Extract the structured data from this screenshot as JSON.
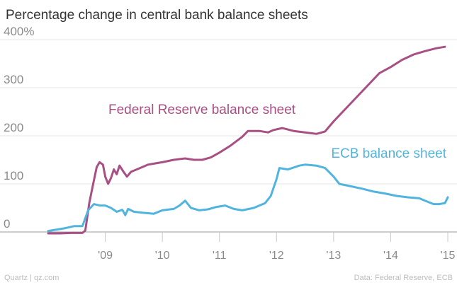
{
  "chart_data": {
    "type": "line",
    "title": "Percentage change in central bank balance sheets",
    "ylim": [
      0,
      400
    ],
    "y_ticks": [
      {
        "value": 400,
        "label": "400%"
      },
      {
        "value": 300,
        "label": "300"
      },
      {
        "value": 200,
        "label": "200"
      },
      {
        "value": 100,
        "label": "100"
      },
      {
        "value": 0,
        "label": "0"
      }
    ],
    "xlim": [
      2008.0,
      2015.0
    ],
    "x_ticks": [
      {
        "value": 2009,
        "label": "'09"
      },
      {
        "value": 2010,
        "label": "'10"
      },
      {
        "value": 2011,
        "label": "'11"
      },
      {
        "value": 2012,
        "label": "'12"
      },
      {
        "value": 2013,
        "label": "'13"
      },
      {
        "value": 2014,
        "label": "'14"
      },
      {
        "value": 2015,
        "label": "'15"
      }
    ],
    "grid": true,
    "series": [
      {
        "name": "Federal Reserve balance sheet",
        "color": "#a84f83",
        "points": [
          [
            2008.0,
            -3
          ],
          [
            2008.2,
            -3
          ],
          [
            2008.4,
            -2
          ],
          [
            2008.6,
            -2
          ],
          [
            2008.65,
            3
          ],
          [
            2008.72,
            60
          ],
          [
            2008.78,
            95
          ],
          [
            2008.85,
            135
          ],
          [
            2008.9,
            145
          ],
          [
            2008.96,
            140
          ],
          [
            2009.0,
            115
          ],
          [
            2009.05,
            100
          ],
          [
            2009.1,
            112
          ],
          [
            2009.15,
            130
          ],
          [
            2009.2,
            120
          ],
          [
            2009.25,
            138
          ],
          [
            2009.32,
            125
          ],
          [
            2009.38,
            115
          ],
          [
            2009.45,
            125
          ],
          [
            2009.55,
            130
          ],
          [
            2009.65,
            135
          ],
          [
            2009.75,
            140
          ],
          [
            2009.85,
            142
          ],
          [
            2010.0,
            145
          ],
          [
            2010.2,
            150
          ],
          [
            2010.4,
            153
          ],
          [
            2010.55,
            150
          ],
          [
            2010.7,
            150
          ],
          [
            2010.85,
            155
          ],
          [
            2011.0,
            165
          ],
          [
            2011.2,
            180
          ],
          [
            2011.4,
            198
          ],
          [
            2011.5,
            210
          ],
          [
            2011.7,
            210
          ],
          [
            2011.85,
            207
          ],
          [
            2011.95,
            212
          ],
          [
            2012.1,
            216
          ],
          [
            2012.3,
            210
          ],
          [
            2012.5,
            207
          ],
          [
            2012.7,
            204
          ],
          [
            2012.85,
            209
          ],
          [
            2013.0,
            230
          ],
          [
            2013.2,
            255
          ],
          [
            2013.4,
            280
          ],
          [
            2013.6,
            305
          ],
          [
            2013.8,
            330
          ],
          [
            2014.0,
            343
          ],
          [
            2014.2,
            358
          ],
          [
            2014.4,
            369
          ],
          [
            2014.6,
            376
          ],
          [
            2014.8,
            382
          ],
          [
            2014.95,
            385
          ]
        ]
      },
      {
        "name": "ECB balance sheet",
        "color": "#50b4df",
        "points": [
          [
            2008.0,
            2
          ],
          [
            2008.15,
            5
          ],
          [
            2008.3,
            8
          ],
          [
            2008.45,
            12
          ],
          [
            2008.6,
            12
          ],
          [
            2008.7,
            45
          ],
          [
            2008.8,
            58
          ],
          [
            2008.9,
            55
          ],
          [
            2009.0,
            55
          ],
          [
            2009.1,
            50
          ],
          [
            2009.2,
            42
          ],
          [
            2009.3,
            46
          ],
          [
            2009.35,
            35
          ],
          [
            2009.4,
            48
          ],
          [
            2009.5,
            42
          ],
          [
            2009.65,
            40
          ],
          [
            2009.85,
            38
          ],
          [
            2010.0,
            45
          ],
          [
            2010.2,
            48
          ],
          [
            2010.3,
            55
          ],
          [
            2010.4,
            65
          ],
          [
            2010.5,
            50
          ],
          [
            2010.65,
            45
          ],
          [
            2010.8,
            47
          ],
          [
            2010.95,
            52
          ],
          [
            2011.1,
            55
          ],
          [
            2011.25,
            48
          ],
          [
            2011.4,
            45
          ],
          [
            2011.6,
            50
          ],
          [
            2011.8,
            60
          ],
          [
            2011.9,
            75
          ],
          [
            2012.0,
            110
          ],
          [
            2012.05,
            133
          ],
          [
            2012.2,
            130
          ],
          [
            2012.4,
            138
          ],
          [
            2012.5,
            140
          ],
          [
            2012.7,
            138
          ],
          [
            2012.85,
            133
          ],
          [
            2013.0,
            115
          ],
          [
            2013.1,
            100
          ],
          [
            2013.3,
            95
          ],
          [
            2013.5,
            90
          ],
          [
            2013.7,
            84
          ],
          [
            2013.9,
            80
          ],
          [
            2014.1,
            75
          ],
          [
            2014.3,
            72
          ],
          [
            2014.5,
            70
          ],
          [
            2014.6,
            65
          ],
          [
            2014.75,
            58
          ],
          [
            2014.85,
            58
          ],
          [
            2014.95,
            60
          ],
          [
            2015.0,
            72
          ]
        ]
      }
    ],
    "annotations": [
      {
        "series_index": 0,
        "text": "Federal Reserve balance sheet"
      },
      {
        "series_index": 1,
        "text": "ECB balance sheet"
      }
    ]
  },
  "footer": {
    "source_left": "Quartz | qz.com",
    "source_right": "Data: Federal Reserve, ECB"
  }
}
